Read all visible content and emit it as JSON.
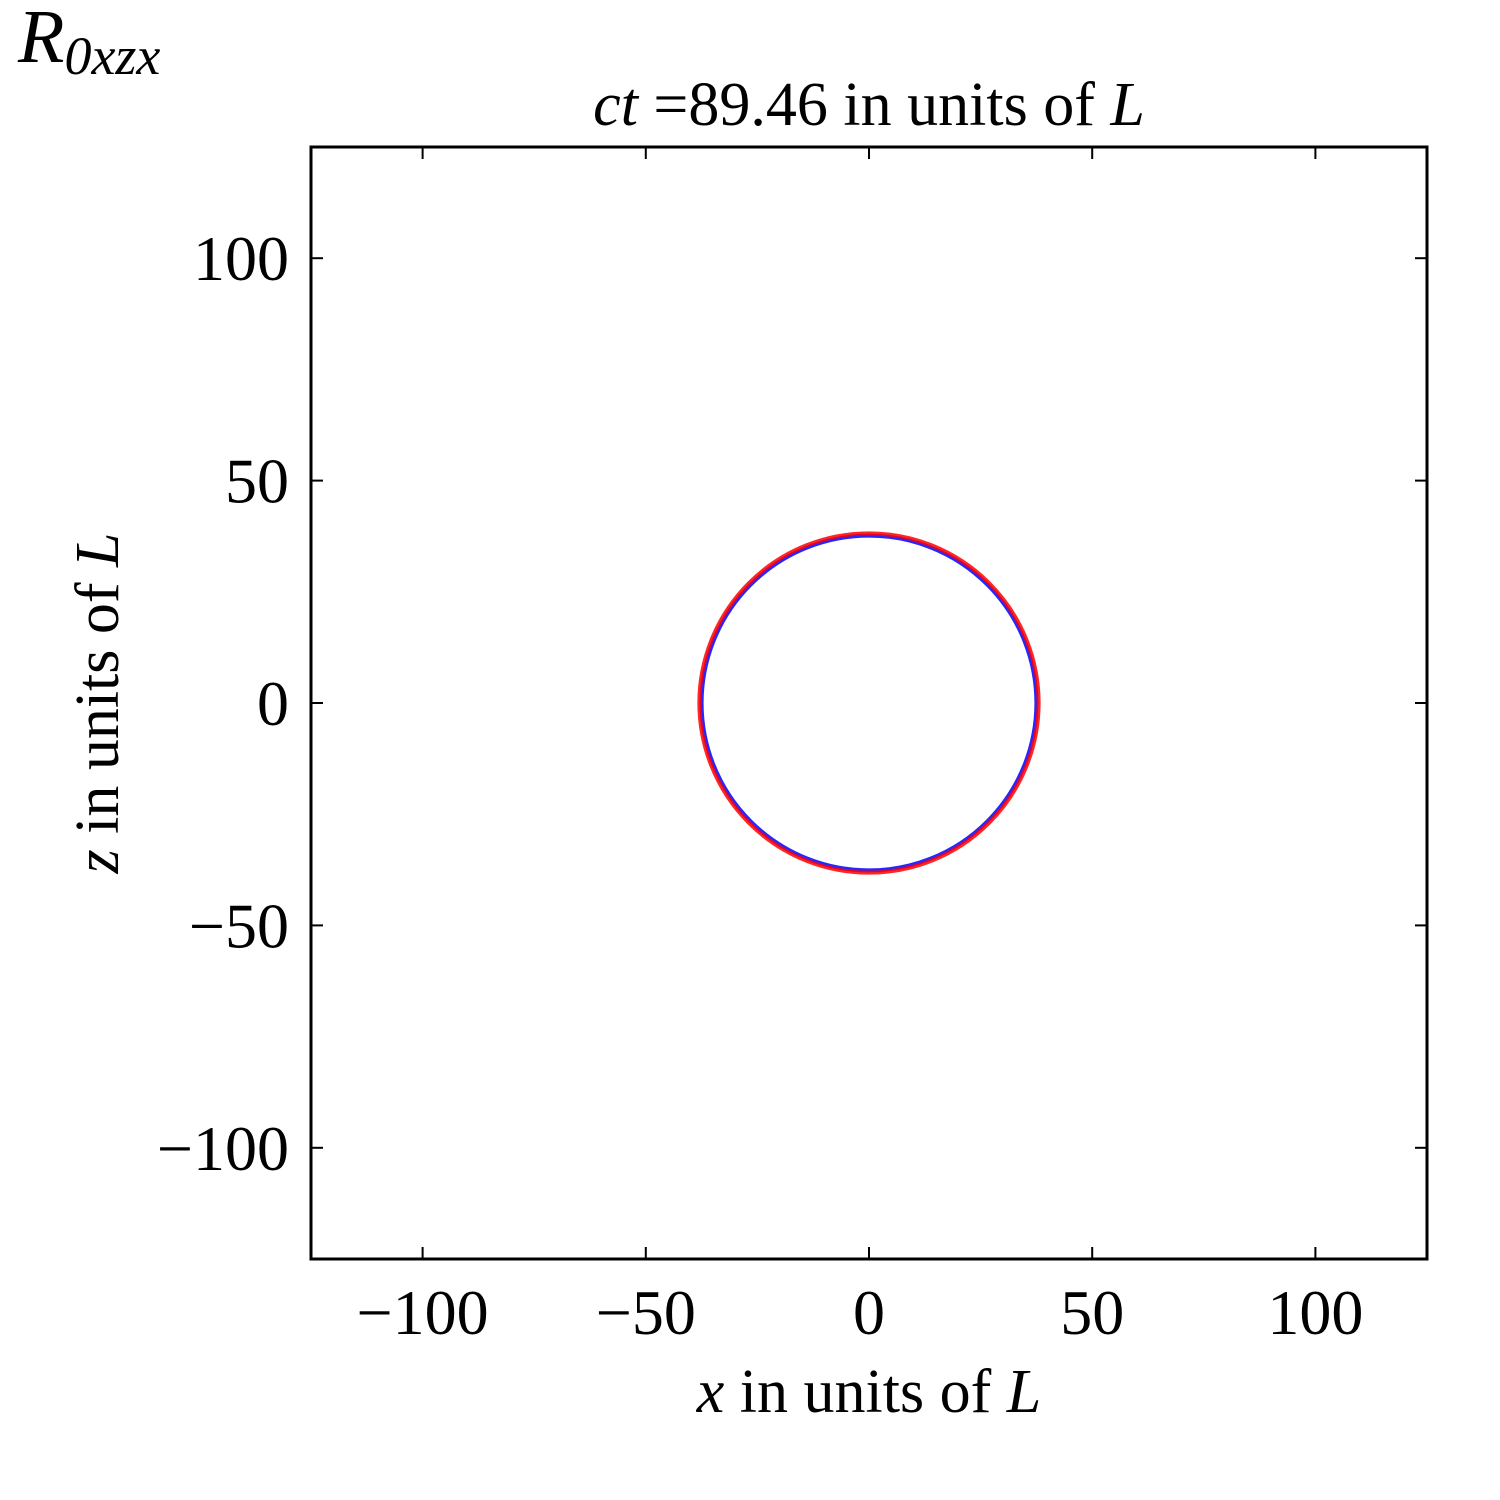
{
  "chart_data": {
    "type": "ring",
    "corner_label": [
      "R",
      "0xzx"
    ],
    "title": [
      "ct",
      " =89.46 in units of ",
      "L"
    ],
    "xlabel": [
      "x",
      " in units of ",
      "L"
    ],
    "ylabel": [
      "z",
      " in units of ",
      "L"
    ],
    "xlim": [
      -125,
      125
    ],
    "ylim": [
      -125,
      125
    ],
    "xticks": [
      {
        "value": -100,
        "label": "−100"
      },
      {
        "value": -50,
        "label": "−50"
      },
      0,
      50,
      100
    ],
    "yticks": [
      {
        "value": -100,
        "label": "−100"
      },
      {
        "value": -50,
        "label": "−50"
      },
      0,
      50,
      100
    ],
    "series": [
      {
        "color": "#0000ff",
        "x": 0,
        "y": 0,
        "r": 37.5
      },
      {
        "color": "#ff0000",
        "x": 0,
        "y": 0,
        "r": 38
      }
    ]
  }
}
